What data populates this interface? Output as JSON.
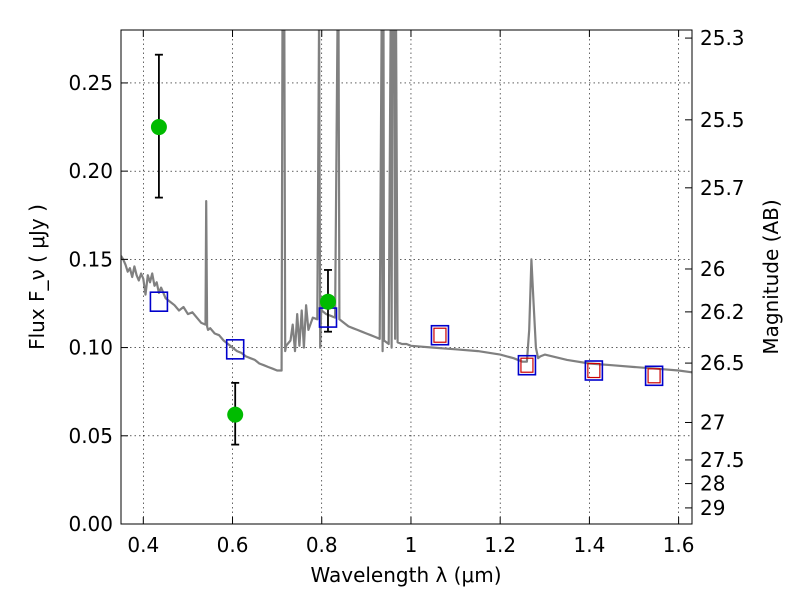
{
  "chart_data": {
    "type": "scatter",
    "xlabel": "Wavelength  λ (μm)",
    "ylabel_left": "Flux  F_ν  ( μJy )",
    "ylabel_right": "Magnitude (AB)",
    "xlim": [
      0.35,
      1.63
    ],
    "ylim": [
      0.0,
      0.28
    ],
    "grid": true,
    "x_ticks": [
      0.4,
      0.6,
      0.8,
      1.0,
      1.2,
      1.4,
      1.6
    ],
    "x_tick_labels": [
      "0.4",
      "0.6",
      "0.8",
      "1",
      "1.2",
      "1.4",
      "1.6"
    ],
    "y_ticks": [
      0.0,
      0.05,
      0.1,
      0.15,
      0.2,
      0.25
    ],
    "y_tick_labels": [
      "0.00",
      "0.05",
      "0.10",
      "0.15",
      "0.20",
      "0.25"
    ],
    "mag_ticks": [
      25.3,
      25.5,
      25.7,
      26,
      26.2,
      26.5,
      27,
      27.5,
      28,
      29
    ],
    "mag_tick_labels": [
      "25.3",
      "25.5",
      "25.7",
      "26",
      "26.2",
      "26.5",
      "27",
      "27.5",
      "28",
      "29"
    ],
    "series": [
      {
        "kind": "observed",
        "color": "#00bb00",
        "points": [
          {
            "x": 0.435,
            "y": 0.225,
            "ylow": 0.185,
            "yhigh": 0.266
          },
          {
            "x": 0.606,
            "y": 0.062,
            "ylow": 0.045,
            "yhigh": 0.08
          },
          {
            "x": 0.814,
            "y": 0.126,
            "ylow": 0.109,
            "yhigh": 0.144
          }
        ]
      },
      {
        "kind": "model-bandpass",
        "color": "#0000cc",
        "points": [
          {
            "x": 0.435,
            "y": 0.126
          },
          {
            "x": 0.606,
            "y": 0.099
          },
          {
            "x": 0.814,
            "y": 0.117
          },
          {
            "x": 1.065,
            "y": 0.107
          },
          {
            "x": 1.26,
            "y": 0.09
          },
          {
            "x": 1.41,
            "y": 0.087
          },
          {
            "x": 1.545,
            "y": 0.084
          }
        ]
      },
      {
        "kind": "model-bandpass-inner",
        "color": "#cc0000",
        "points": [
          {
            "x": 1.065,
            "y": 0.107
          },
          {
            "x": 1.26,
            "y": 0.09
          },
          {
            "x": 1.41,
            "y": 0.087
          },
          {
            "x": 1.545,
            "y": 0.084
          }
        ]
      },
      {
        "kind": "model-spectrum",
        "color": "#808080",
        "x": [
          0.35,
          0.355,
          0.36,
          0.365,
          0.37,
          0.375,
          0.38,
          0.385,
          0.39,
          0.395,
          0.4,
          0.405,
          0.41,
          0.415,
          0.42,
          0.425,
          0.43,
          0.435,
          0.44,
          0.45,
          0.46,
          0.47,
          0.48,
          0.49,
          0.5,
          0.51,
          0.52,
          0.53,
          0.5395,
          0.541,
          0.543,
          0.545,
          0.55,
          0.56,
          0.57,
          0.58,
          0.59,
          0.6,
          0.61,
          0.62,
          0.63,
          0.64,
          0.65,
          0.66,
          0.67,
          0.68,
          0.69,
          0.7,
          0.71,
          0.712,
          0.714,
          0.716,
          0.718,
          0.72,
          0.73,
          0.735,
          0.74,
          0.745,
          0.75,
          0.755,
          0.76,
          0.765,
          0.77,
          0.78,
          0.79,
          0.794,
          0.7965,
          0.799,
          0.8,
          0.81,
          0.82,
          0.83,
          0.8355,
          0.8375,
          0.8395,
          0.85,
          0.86,
          0.87,
          0.88,
          0.89,
          0.9,
          0.91,
          0.92,
          0.93,
          0.9345,
          0.9365,
          0.9385,
          0.9395,
          0.945,
          0.95,
          0.9545,
          0.9565,
          0.9585,
          0.9605,
          0.9625,
          0.9645,
          0.9665,
          0.97,
          0.98,
          0.99,
          1.0,
          1.05,
          1.1,
          1.15,
          1.2,
          1.23,
          1.25,
          1.26,
          1.265,
          1.27,
          1.275,
          1.28,
          1.285,
          1.29,
          1.3,
          1.35,
          1.4,
          1.45,
          1.5,
          1.55,
          1.6,
          1.63
        ],
        "y": [
          0.152,
          0.15,
          0.147,
          0.143,
          0.145,
          0.14,
          0.146,
          0.141,
          0.138,
          0.142,
          0.139,
          0.13,
          0.141,
          0.137,
          0.142,
          0.135,
          0.137,
          0.131,
          0.134,
          0.128,
          0.126,
          0.124,
          0.121,
          0.123,
          0.119,
          0.12,
          0.117,
          0.114,
          0.113,
          0.183,
          0.112,
          0.11,
          0.111,
          0.108,
          0.107,
          0.104,
          0.102,
          0.1,
          0.098,
          0.097,
          0.095,
          0.094,
          0.093,
          0.091,
          0.09,
          0.089,
          0.088,
          0.087,
          0.087,
          0.28,
          0.28,
          0.28,
          0.098,
          0.101,
          0.104,
          0.113,
          0.098,
          0.119,
          0.101,
          0.121,
          0.1,
          0.124,
          0.11,
          0.117,
          0.116,
          0.28,
          0.1,
          0.124,
          0.121,
          0.119,
          0.118,
          0.117,
          0.28,
          0.28,
          0.116,
          0.114,
          0.112,
          0.111,
          0.11,
          0.109,
          0.108,
          0.107,
          0.106,
          0.105,
          0.28,
          0.098,
          0.28,
          0.104,
          0.103,
          0.102,
          0.28,
          0.1,
          0.28,
          0.28,
          0.28,
          0.105,
          0.28,
          0.103,
          0.102,
          0.102,
          0.101,
          0.1,
          0.099,
          0.098,
          0.096,
          0.094,
          0.092,
          0.092,
          0.11,
          0.15,
          0.125,
          0.1,
          0.094,
          0.095,
          0.096,
          0.093,
          0.091,
          0.09,
          0.089,
          0.088,
          0.087,
          0.086
        ]
      }
    ]
  }
}
